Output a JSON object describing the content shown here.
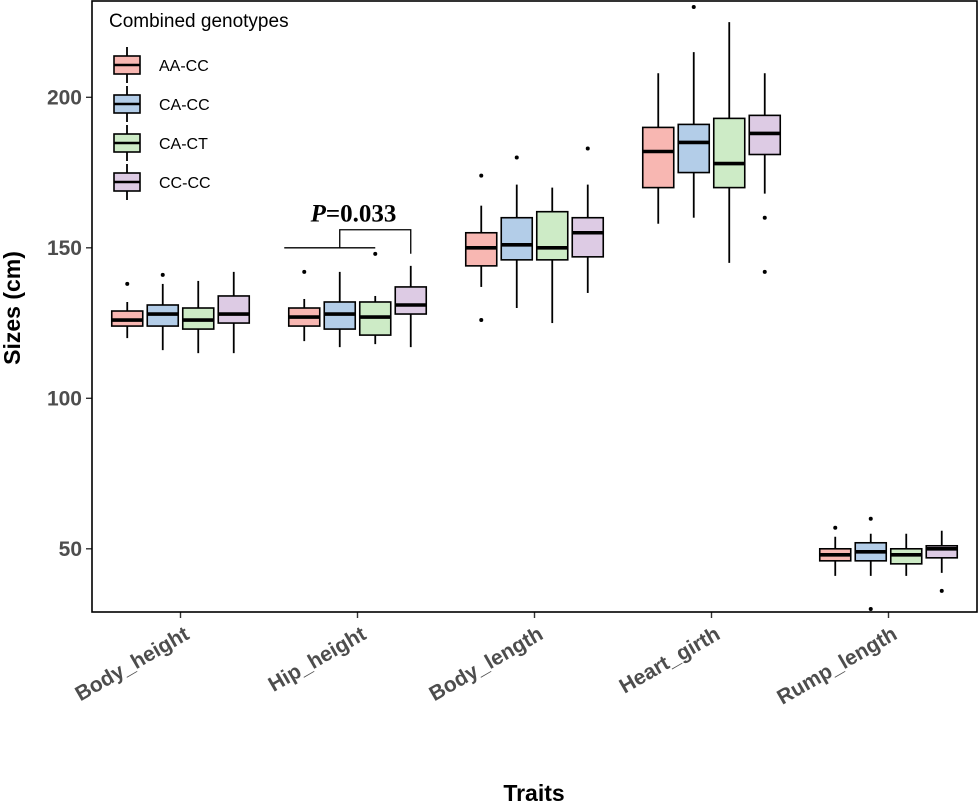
{
  "chart_data": {
    "type": "boxplot",
    "xlabel": "Traits",
    "ylabel": "Sizes (cm)",
    "ylim": [
      29,
      232
    ],
    "yticks": [
      50,
      100,
      150,
      200
    ],
    "categories": [
      "Body_height",
      "Hip_height",
      "Body_length",
      "Heart_girth",
      "Rump_length"
    ],
    "legend": {
      "title": "Combined genotypes",
      "position": "top-left"
    },
    "series": [
      {
        "name": "AA-CC",
        "color": "#f8b7b2",
        "boxes": [
          {
            "whisker_low": 120,
            "q1": 124,
            "median": 126,
            "q3": 129,
            "whisker_high": 132,
            "outliers": [
              138
            ]
          },
          {
            "whisker_low": 119,
            "q1": 124,
            "median": 127,
            "q3": 130,
            "whisker_high": 133,
            "outliers": [
              142
            ]
          },
          {
            "whisker_low": 137,
            "q1": 144,
            "median": 150,
            "q3": 155,
            "whisker_high": 164,
            "outliers": [
              126,
              174
            ]
          },
          {
            "whisker_low": 158,
            "q1": 170,
            "median": 182,
            "q3": 190,
            "whisker_high": 208,
            "outliers": []
          },
          {
            "whisker_low": 41,
            "q1": 46,
            "median": 48,
            "q3": 50,
            "whisker_high": 54,
            "outliers": [
              57
            ]
          }
        ]
      },
      {
        "name": "CA-CC",
        "color": "#b3cde8",
        "boxes": [
          {
            "whisker_low": 116,
            "q1": 124,
            "median": 128,
            "q3": 131,
            "whisker_high": 138,
            "outliers": [
              141
            ]
          },
          {
            "whisker_low": 117,
            "q1": 123,
            "median": 128,
            "q3": 132,
            "whisker_high": 142,
            "outliers": []
          },
          {
            "whisker_low": 130,
            "q1": 146,
            "median": 151,
            "q3": 160,
            "whisker_high": 171,
            "outliers": [
              180
            ]
          },
          {
            "whisker_low": 160,
            "q1": 175,
            "median": 185,
            "q3": 191,
            "whisker_high": 215,
            "outliers": [
              230
            ]
          },
          {
            "whisker_low": 41,
            "q1": 46,
            "median": 49,
            "q3": 52,
            "whisker_high": 55,
            "outliers": [
              60,
              30
            ]
          }
        ]
      },
      {
        "name": "CA-CT",
        "color": "#cdebc6",
        "boxes": [
          {
            "whisker_low": 115,
            "q1": 123,
            "median": 126,
            "q3": 130,
            "whisker_high": 139,
            "outliers": []
          },
          {
            "whisker_low": 118,
            "q1": 121,
            "median": 127,
            "q3": 132,
            "whisker_high": 134,
            "outliers": [
              148
            ]
          },
          {
            "whisker_low": 125,
            "q1": 146,
            "median": 150,
            "q3": 162,
            "whisker_high": 170,
            "outliers": []
          },
          {
            "whisker_low": 145,
            "q1": 170,
            "median": 178,
            "q3": 193,
            "whisker_high": 225,
            "outliers": []
          },
          {
            "whisker_low": 41,
            "q1": 45,
            "median": 48,
            "q3": 50,
            "whisker_high": 55,
            "outliers": []
          }
        ]
      },
      {
        "name": "CC-CC",
        "color": "#ddcbe4",
        "boxes": [
          {
            "whisker_low": 115,
            "q1": 125,
            "median": 128,
            "q3": 134,
            "whisker_high": 142,
            "outliers": []
          },
          {
            "whisker_low": 117,
            "q1": 128,
            "median": 131,
            "q3": 137,
            "whisker_high": 144,
            "outliers": []
          },
          {
            "whisker_low": 135,
            "q1": 147,
            "median": 155,
            "q3": 160,
            "whisker_high": 171,
            "outliers": [
              183
            ]
          },
          {
            "whisker_low": 168,
            "q1": 181,
            "median": 188,
            "q3": 194,
            "whisker_high": 208,
            "outliers": [
              160,
              142
            ]
          },
          {
            "whisker_low": 42,
            "q1": 47,
            "median": 50,
            "q3": 51,
            "whisker_high": 56,
            "outliers": [
              36
            ]
          }
        ]
      }
    ],
    "annotations": [
      {
        "category": "Hip_height",
        "p_symbol": "P",
        "p_value": "=0.033",
        "bracket_y": 150,
        "inner_bracket_y": 156
      }
    ]
  }
}
